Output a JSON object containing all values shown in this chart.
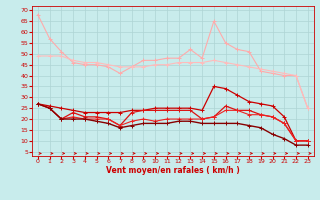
{
  "x": [
    0,
    1,
    2,
    3,
    4,
    5,
    6,
    7,
    8,
    9,
    10,
    11,
    12,
    13,
    14,
    15,
    16,
    17,
    18,
    19,
    20,
    21,
    22,
    23
  ],
  "line1": [
    68,
    57,
    51,
    46,
    45,
    45,
    44,
    41,
    44,
    47,
    47,
    48,
    48,
    52,
    48,
    65,
    55,
    52,
    51,
    42,
    41,
    40,
    40,
    25
  ],
  "line2": [
    49,
    49,
    49,
    47,
    46,
    46,
    45,
    44,
    44,
    44,
    45,
    45,
    46,
    46,
    46,
    47,
    46,
    45,
    44,
    43,
    42,
    41,
    40,
    25
  ],
  "line3": [
    27,
    26,
    25,
    24,
    23,
    23,
    23,
    23,
    24,
    24,
    25,
    25,
    25,
    25,
    24,
    35,
    34,
    31,
    28,
    27,
    26,
    21,
    10,
    10
  ],
  "line4": [
    27,
    25,
    20,
    23,
    21,
    21,
    20,
    17,
    23,
    24,
    24,
    24,
    24,
    24,
    20,
    21,
    26,
    24,
    24,
    22,
    21,
    18,
    10,
    10
  ],
  "line5": [
    27,
    25,
    20,
    21,
    20,
    20,
    20,
    17,
    19,
    20,
    19,
    20,
    20,
    20,
    20,
    21,
    24,
    24,
    22,
    22,
    21,
    18,
    10,
    10
  ],
  "line6": [
    27,
    25,
    20,
    20,
    20,
    19,
    18,
    16,
    17,
    18,
    18,
    18,
    19,
    19,
    18,
    18,
    18,
    18,
    17,
    16,
    13,
    11,
    8,
    8
  ],
  "bg_color": "#c8ecec",
  "grid_color": "#aed4d4",
  "line1_color": "#ffaaaa",
  "line2_color": "#ffbbbb",
  "line3_color": "#cc0000",
  "line4_color": "#dd1111",
  "line5_color": "#ee2222",
  "line6_color": "#880000",
  "xlabel": "Vent moyen/en rafales ( km/h )",
  "yticks": [
    5,
    10,
    15,
    20,
    25,
    30,
    35,
    40,
    45,
    50,
    55,
    60,
    65,
    70
  ],
  "ylim": [
    3,
    72
  ],
  "xlim": [
    -0.5,
    23.5
  ]
}
